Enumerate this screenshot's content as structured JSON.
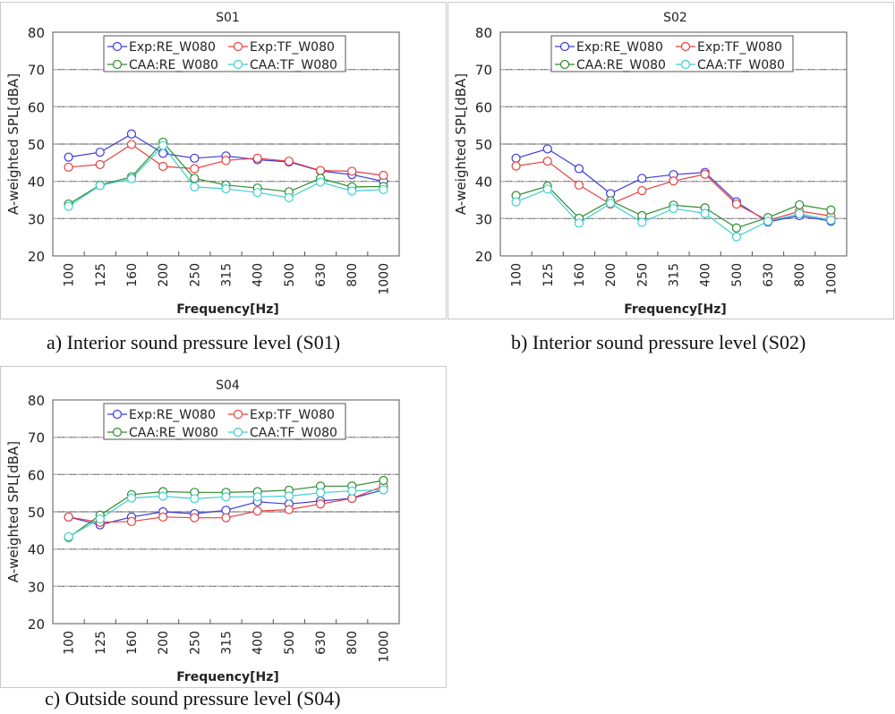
{
  "captions": {
    "a": "a) Interior sound pressure level (S01)",
    "b": "b) Interior sound pressure level (S02)",
    "c": "c) Outside sound pressure level (S04)"
  },
  "series_styles": [
    {
      "name": "Exp:RE_W080",
      "color": "#3b3bd9"
    },
    {
      "name": "Exp:TF_W080",
      "color": "#e8403f"
    },
    {
      "name": "CAA:RE_W080",
      "color": "#2e8b2e"
    },
    {
      "name": "CAA:TF_W080",
      "color": "#3fcfcf"
    }
  ],
  "chart_data": [
    {
      "type": "line",
      "title": "S01",
      "xlabel": "Frequency[Hz]",
      "ylabel": "A-weighted SPL[dBA]",
      "ylim": [
        20,
        80
      ],
      "yticks": [
        20,
        30,
        40,
        50,
        60,
        70,
        80
      ],
      "grid": true,
      "legend": "top-center",
      "categories": [
        "100",
        "125",
        "160",
        "200",
        "250",
        "315",
        "400",
        "500",
        "630",
        "800",
        "1000"
      ],
      "series": [
        {
          "name": "Exp:RE_W080",
          "values": [
            46.5,
            47.8,
            52.7,
            47.5,
            46.2,
            46.8,
            45.8,
            45.2,
            42.8,
            41.8,
            40.0
          ]
        },
        {
          "name": "Exp:TF_W080",
          "values": [
            43.8,
            44.5,
            49.9,
            44.0,
            43.4,
            45.6,
            46.2,
            45.4,
            42.9,
            42.7,
            41.6
          ]
        },
        {
          "name": "CAA:RE_W080",
          "values": [
            33.9,
            39.0,
            41.2,
            50.5,
            40.8,
            39.0,
            38.2,
            37.2,
            40.8,
            38.5,
            38.6
          ]
        },
        {
          "name": "CAA:TF_W080",
          "values": [
            33.3,
            38.9,
            40.7,
            49.6,
            38.5,
            38.0,
            37.0,
            35.6,
            39.8,
            37.4,
            37.8
          ]
        }
      ]
    },
    {
      "type": "line",
      "title": "S02",
      "xlabel": "Frequency[Hz]",
      "ylabel": "A-weighted SPL[dBA]",
      "ylim": [
        20,
        80
      ],
      "yticks": [
        20,
        30,
        40,
        50,
        60,
        70,
        80
      ],
      "grid": true,
      "legend": "top-center",
      "categories": [
        "100",
        "125",
        "160",
        "200",
        "250",
        "315",
        "400",
        "500",
        "630",
        "800",
        "1000"
      ],
      "series": [
        {
          "name": "Exp:RE_W080",
          "values": [
            46.2,
            48.7,
            43.4,
            36.7,
            40.8,
            41.8,
            42.4,
            34.5,
            29.1,
            30.8,
            29.3
          ]
        },
        {
          "name": "Exp:TF_W080",
          "values": [
            44.1,
            45.4,
            39.0,
            33.9,
            37.5,
            40.1,
            41.9,
            33.9,
            29.5,
            32.0,
            30.7
          ]
        },
        {
          "name": "CAA:RE_W080",
          "values": [
            36.2,
            38.7,
            30.1,
            34.8,
            30.8,
            33.6,
            32.9,
            27.5,
            30.3,
            33.7,
            32.3
          ]
        },
        {
          "name": "CAA:TF_W080",
          "values": [
            34.5,
            37.9,
            28.8,
            34.1,
            29.0,
            32.7,
            31.4,
            25.1,
            29.3,
            31.3,
            29.6
          ]
        }
      ]
    },
    {
      "type": "line",
      "title": "S04",
      "xlabel": "Frequency[Hz]",
      "ylabel": "A-weighted SPL[dBA]",
      "ylim": [
        20,
        80
      ],
      "yticks": [
        20,
        30,
        40,
        50,
        60,
        70,
        80
      ],
      "grid": true,
      "legend": "top-center",
      "categories": [
        "100",
        "125",
        "160",
        "200",
        "250",
        "315",
        "400",
        "500",
        "630",
        "800",
        "1000"
      ],
      "series": [
        {
          "name": "Exp:RE_W080",
          "values": [
            48.6,
            46.5,
            48.6,
            50.0,
            49.5,
            50.4,
            52.7,
            52.1,
            52.9,
            53.6,
            55.9
          ]
        },
        {
          "name": "Exp:TF_W080",
          "values": [
            48.6,
            47.2,
            47.4,
            48.6,
            48.4,
            48.4,
            50.2,
            50.6,
            52.1,
            53.6,
            56.9
          ]
        },
        {
          "name": "CAA:RE_W080",
          "values": [
            43.1,
            49.1,
            54.6,
            55.4,
            55.2,
            55.2,
            55.4,
            55.8,
            56.9,
            56.9,
            58.4
          ]
        },
        {
          "name": "CAA:TF_W080",
          "values": [
            43.3,
            48.1,
            53.7,
            54.2,
            53.5,
            54.0,
            54.0,
            54.2,
            55.1,
            55.6,
            55.9
          ]
        }
      ]
    }
  ]
}
